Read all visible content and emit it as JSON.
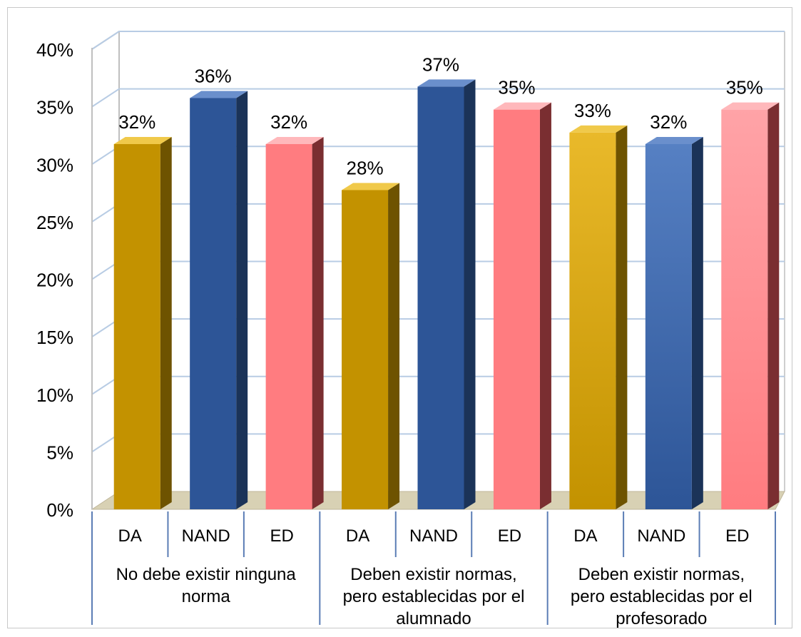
{
  "chart_data": {
    "type": "bar",
    "groups": [
      "No debe existir ninguna norma",
      "Deben existir normas, pero establecidas por el alumnado",
      "Deben existir normas, pero establecidas por el profesorado"
    ],
    "group_label_lines": [
      [
        "No debe existir ninguna",
        "norma"
      ],
      [
        "Deben existir normas,",
        "pero establecidas por el",
        "alumnado"
      ],
      [
        "Deben existir normas,",
        "pero establecidas por el",
        "profesorado"
      ]
    ],
    "categories": [
      "DA",
      "NAND",
      "ED"
    ],
    "values": [
      [
        0.32,
        0.36,
        0.32
      ],
      [
        0.28,
        0.37,
        0.35
      ],
      [
        0.33,
        0.32,
        0.35
      ]
    ],
    "value_labels": [
      [
        "32%",
        "36%",
        "32%"
      ],
      [
        "28%",
        "37%",
        "35%"
      ],
      [
        "33%",
        "32%",
        "35%"
      ]
    ],
    "ylim": [
      0,
      0.4
    ],
    "yticks": [
      0,
      0.05,
      0.1,
      0.15,
      0.2,
      0.25,
      0.3,
      0.35,
      0.4
    ],
    "ytick_labels": [
      "0%",
      "5%",
      "10%",
      "15%",
      "20%",
      "25%",
      "30%",
      "35%",
      "40%"
    ],
    "grid": true,
    "colors": {
      "DA": {
        "front": "#C39200",
        "front_light": "#E9B92A",
        "side": "#6E5300",
        "top": "#F0C94A"
      },
      "NAND": {
        "front": "#2D5597",
        "front_light": "#5680C3",
        "side": "#1B3358",
        "top": "#6A8FCC"
      },
      "ED": {
        "front": "#FF7C80",
        "front_light": "#FFA3A7",
        "side": "#7A2E31",
        "top": "#FFB8BB"
      },
      "floor": "#D8D1B4",
      "gridline": "#B8CCE4",
      "axis": "#5B7DB5"
    }
  }
}
